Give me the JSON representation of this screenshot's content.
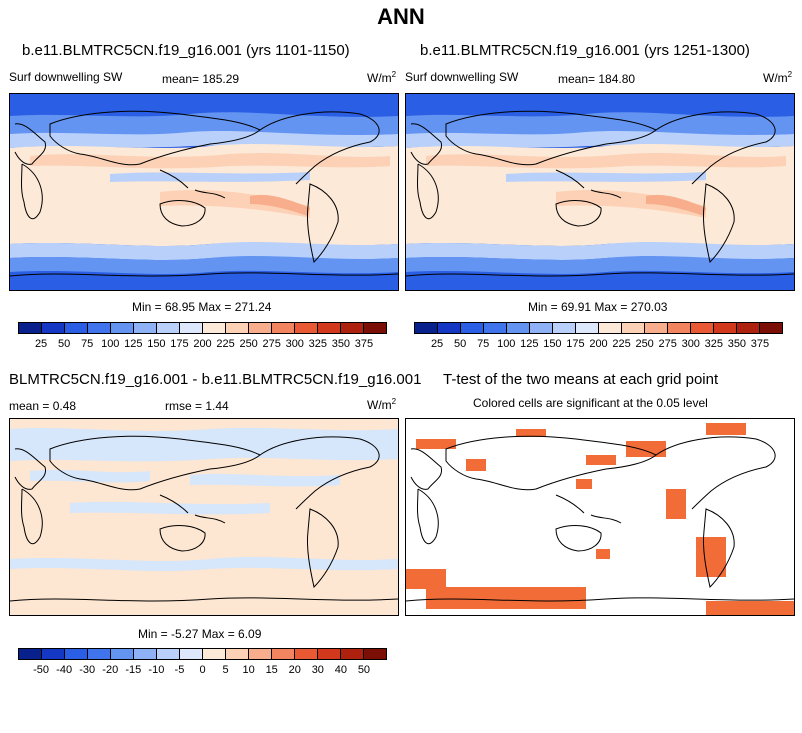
{
  "main_title": "ANN",
  "panel1": {
    "title": "b.e11.BLMTRC5CN.f19_g16.001 (yrs 1101-1150)",
    "variable": "Surf downwelling SW",
    "mean_label": "mean= 185.29",
    "units": "W/m",
    "units_sup": "2",
    "minmax": "Min =  68.95 Max = 271.24"
  },
  "panel2": {
    "title": "b.e11.BLMTRC5CN.f19_g16.001 (yrs 1251-1300)",
    "variable": "Surf downwelling SW",
    "mean_label": "mean= 184.80",
    "units": "W/m",
    "units_sup": "2",
    "minmax": "Min =  69.91 Max = 270.03"
  },
  "panel3": {
    "title": "BLMTRC5CN.f19_g16.001 - b.e11.BLMTRC5CN.f19_g16.001",
    "mean_label": "mean =   0.48",
    "rmse_label": "rmse =   1.44",
    "units": "W/m",
    "units_sup": "2",
    "minmax": "Min =  -5.27 Max =   6.09"
  },
  "panel4": {
    "title": "T-test of the two means at each grid point",
    "subtitle": "Colored cells are significant at the 0.05 level"
  },
  "colorbar_abs": {
    "labels": [
      "25",
      "50",
      "75",
      "100",
      "125",
      "150",
      "175",
      "200",
      "225",
      "250",
      "275",
      "300",
      "325",
      "350",
      "375"
    ],
    "colors": [
      "#08218c",
      "#1438c4",
      "#2a5ee4",
      "#3f74ec",
      "#6394f2",
      "#8fb2f6",
      "#b8d0fa",
      "#dde8fc",
      "#fde9d8",
      "#fcd1b6",
      "#f8ae8c",
      "#f28460",
      "#e95a34",
      "#d2381c",
      "#ad210e",
      "#7b0f06"
    ]
  },
  "colorbar_diff": {
    "labels": [
      "-50",
      "-40",
      "-30",
      "-20",
      "-15",
      "-10",
      "-5",
      "0",
      "5",
      "10",
      "15",
      "20",
      "30",
      "40",
      "50"
    ],
    "colors": [
      "#08218c",
      "#1438c4",
      "#2a5ee4",
      "#3f74ec",
      "#6394f2",
      "#8fb2f6",
      "#b8d0fa",
      "#dde8fc",
      "#fde9d8",
      "#fcd1b6",
      "#f8ae8c",
      "#f28460",
      "#e95a34",
      "#d2381c",
      "#ad210e",
      "#7b0f06"
    ]
  },
  "ttest_color": "#f26c38",
  "map_colors": {
    "deep_blue": "#2a5ee4",
    "mid_blue": "#6394f2",
    "light_blue": "#b8d0fa",
    "pale_blue": "#dde8fc",
    "cream": "#fde9d8",
    "peach": "#fcd1b6",
    "salmon": "#f8ae8c",
    "diff_blue": "#d6e6fb",
    "diff_cream": "#fde6d2"
  }
}
